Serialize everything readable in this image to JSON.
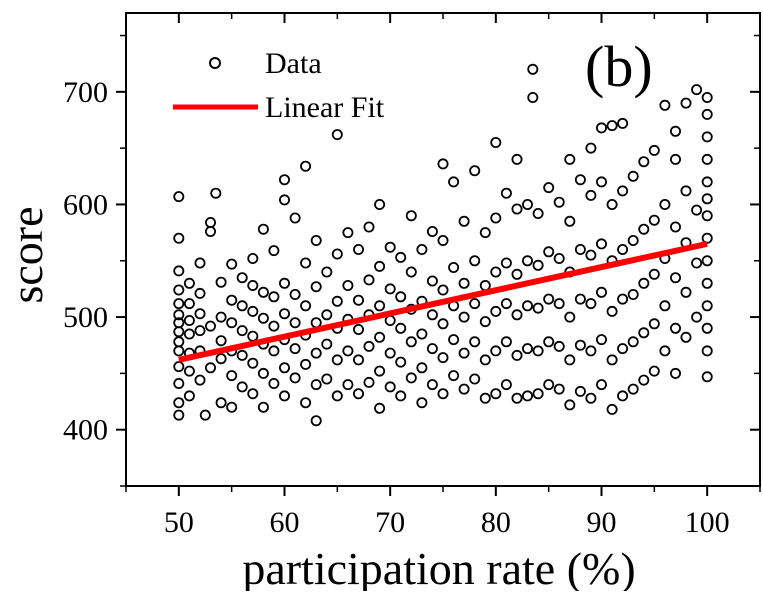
{
  "chart_data": {
    "type": "scatter",
    "panel_label": "(b)",
    "xlabel": "participation rate (%)",
    "ylabel": "score",
    "xlim": [
      45,
      105
    ],
    "ylim": [
      350,
      770
    ],
    "x_ticks": [
      50,
      60,
      70,
      80,
      90,
      100
    ],
    "y_ticks": [
      400,
      500,
      600,
      700
    ],
    "x_tick_labels": [
      "50",
      "60",
      "70",
      "80",
      "90",
      "100"
    ],
    "y_tick_labels": [
      "400",
      "500",
      "600",
      "700"
    ],
    "legend": {
      "position": "top-left",
      "entries": [
        {
          "label": "Data",
          "marker": "open-circle",
          "color": "#000000"
        },
        {
          "label": "Linear Fit",
          "marker": "line",
          "color": "#ff0000"
        }
      ]
    },
    "series": [
      {
        "name": "Data",
        "marker": "open-circle",
        "color": "#000000",
        "points": [
          [
            50,
            413
          ],
          [
            50,
            424
          ],
          [
            50,
            441
          ],
          [
            50,
            456
          ],
          [
            50,
            470
          ],
          [
            50,
            478
          ],
          [
            50,
            487
          ],
          [
            50,
            495
          ],
          [
            50,
            502
          ],
          [
            50,
            512
          ],
          [
            50,
            524
          ],
          [
            50,
            541
          ],
          [
            50,
            570
          ],
          [
            50,
            607
          ],
          [
            51,
            430
          ],
          [
            51,
            452
          ],
          [
            51,
            468
          ],
          [
            51,
            485
          ],
          [
            51,
            497
          ],
          [
            51,
            512
          ],
          [
            51,
            530
          ],
          [
            52,
            444
          ],
          [
            52,
            470
          ],
          [
            52,
            488
          ],
          [
            52,
            503
          ],
          [
            52,
            521
          ],
          [
            52,
            548
          ],
          [
            52.5,
            413
          ],
          [
            53,
            584
          ],
          [
            53,
            576
          ],
          [
            53.5,
            610
          ],
          [
            53,
            455
          ],
          [
            53,
            492
          ],
          [
            54,
            424
          ],
          [
            54,
            463
          ],
          [
            54,
            479
          ],
          [
            54,
            500
          ],
          [
            54,
            531
          ],
          [
            55,
            420
          ],
          [
            55,
            448
          ],
          [
            55,
            470
          ],
          [
            55,
            495
          ],
          [
            55,
            515
          ],
          [
            55,
            547
          ],
          [
            56,
            438
          ],
          [
            56,
            466
          ],
          [
            56,
            488
          ],
          [
            56,
            510
          ],
          [
            56,
            535
          ],
          [
            57,
            432
          ],
          [
            57,
            459
          ],
          [
            57,
            483
          ],
          [
            57,
            505
          ],
          [
            57,
            528
          ],
          [
            57,
            552
          ],
          [
            58,
            420
          ],
          [
            58,
            450
          ],
          [
            58,
            476
          ],
          [
            58,
            499
          ],
          [
            58,
            522
          ],
          [
            58,
            578
          ],
          [
            59,
            441
          ],
          [
            59,
            470
          ],
          [
            59,
            492
          ],
          [
            59,
            518
          ],
          [
            59,
            559
          ],
          [
            60,
            430
          ],
          [
            60,
            455
          ],
          [
            60,
            480
          ],
          [
            60,
            503
          ],
          [
            60,
            530
          ],
          [
            60,
            604
          ],
          [
            60,
            622
          ],
          [
            61,
            446
          ],
          [
            61,
            472
          ],
          [
            61,
            495
          ],
          [
            61,
            520
          ],
          [
            61,
            588
          ],
          [
            62,
            424
          ],
          [
            62,
            458
          ],
          [
            62,
            484
          ],
          [
            62,
            510
          ],
          [
            62,
            548
          ],
          [
            62,
            634
          ],
          [
            63,
            408
          ],
          [
            63,
            440
          ],
          [
            63,
            468
          ],
          [
            63,
            495
          ],
          [
            63,
            527
          ],
          [
            63,
            568
          ],
          [
            64,
            445
          ],
          [
            64,
            476
          ],
          [
            64,
            502
          ],
          [
            64,
            540
          ],
          [
            65,
            430
          ],
          [
            65,
            462
          ],
          [
            65,
            490
          ],
          [
            65,
            514
          ],
          [
            65,
            556
          ],
          [
            65,
            662
          ],
          [
            66,
            440
          ],
          [
            66,
            470
          ],
          [
            66,
            498
          ],
          [
            66,
            528
          ],
          [
            66,
            575
          ],
          [
            67,
            432
          ],
          [
            67,
            462
          ],
          [
            67,
            489
          ],
          [
            67,
            515
          ],
          [
            67,
            560
          ],
          [
            68,
            442
          ],
          [
            68,
            474
          ],
          [
            68,
            502
          ],
          [
            68,
            533
          ],
          [
            68,
            580
          ],
          [
            69,
            419
          ],
          [
            69,
            452
          ],
          [
            69,
            482
          ],
          [
            69,
            510
          ],
          [
            69,
            545
          ],
          [
            69,
            600
          ],
          [
            70,
            438
          ],
          [
            70,
            468
          ],
          [
            70,
            497
          ],
          [
            70,
            525
          ],
          [
            70,
            562
          ],
          [
            71,
            430
          ],
          [
            71,
            460
          ],
          [
            71,
            490
          ],
          [
            71,
            518
          ],
          [
            71,
            553
          ],
          [
            72,
            446
          ],
          [
            72,
            478
          ],
          [
            72,
            507
          ],
          [
            72,
            540
          ],
          [
            72,
            590
          ],
          [
            73,
            424
          ],
          [
            73,
            455
          ],
          [
            73,
            485
          ],
          [
            73,
            514
          ],
          [
            73,
            560
          ],
          [
            74,
            440
          ],
          [
            74,
            472
          ],
          [
            74,
            502
          ],
          [
            74,
            532
          ],
          [
            74,
            576
          ],
          [
            75,
            432
          ],
          [
            75,
            464
          ],
          [
            75,
            494
          ],
          [
            75,
            524
          ],
          [
            75,
            568
          ],
          [
            75,
            636
          ],
          [
            76,
            448
          ],
          [
            76,
            480
          ],
          [
            76,
            510
          ],
          [
            76,
            544
          ],
          [
            76,
            620
          ],
          [
            77,
            436
          ],
          [
            77,
            468
          ],
          [
            77,
            500
          ],
          [
            77,
            530
          ],
          [
            77,
            585
          ],
          [
            78,
            445
          ],
          [
            78,
            478
          ],
          [
            78,
            512
          ],
          [
            78,
            550
          ],
          [
            78,
            630
          ],
          [
            79,
            428
          ],
          [
            79,
            462
          ],
          [
            79,
            496
          ],
          [
            79,
            528
          ],
          [
            79,
            575
          ],
          [
            80,
            432
          ],
          [
            80,
            470
          ],
          [
            80,
            505
          ],
          [
            80,
            540
          ],
          [
            80,
            588
          ],
          [
            80,
            655
          ],
          [
            81,
            440
          ],
          [
            81,
            478
          ],
          [
            81,
            512
          ],
          [
            81,
            548
          ],
          [
            81,
            610
          ],
          [
            82,
            428
          ],
          [
            82,
            466
          ],
          [
            82,
            502
          ],
          [
            82,
            538
          ],
          [
            82,
            596
          ],
          [
            82,
            640
          ],
          [
            83,
            430
          ],
          [
            83,
            472
          ],
          [
            83,
            510
          ],
          [
            83,
            550
          ],
          [
            83,
            600
          ],
          [
            83.5,
            695
          ],
          [
            83.5,
            720
          ],
          [
            84,
            432
          ],
          [
            84,
            470
          ],
          [
            84,
            508
          ],
          [
            84,
            546
          ],
          [
            84,
            592
          ],
          [
            85,
            440
          ],
          [
            85,
            478
          ],
          [
            85,
            516
          ],
          [
            85,
            558
          ],
          [
            85,
            615
          ],
          [
            86,
            436
          ],
          [
            86,
            474
          ],
          [
            86,
            512
          ],
          [
            86,
            552
          ],
          [
            86,
            602
          ],
          [
            87,
            422
          ],
          [
            87,
            462
          ],
          [
            87,
            500
          ],
          [
            87,
            540
          ],
          [
            87,
            585
          ],
          [
            87,
            640
          ],
          [
            88,
            434
          ],
          [
            88,
            475
          ],
          [
            88,
            516
          ],
          [
            88,
            560
          ],
          [
            88,
            622
          ],
          [
            89,
            428
          ],
          [
            89,
            470
          ],
          [
            89,
            512
          ],
          [
            89,
            555
          ],
          [
            89,
            608
          ],
          [
            89,
            650
          ],
          [
            90,
            440
          ],
          [
            90,
            480
          ],
          [
            90,
            522
          ],
          [
            90,
            565
          ],
          [
            90,
            620
          ],
          [
            90,
            668
          ],
          [
            91,
            418
          ],
          [
            91,
            462
          ],
          [
            91,
            505
          ],
          [
            91,
            550
          ],
          [
            91,
            600
          ],
          [
            91,
            670
          ],
          [
            92,
            430
          ],
          [
            92,
            472
          ],
          [
            92,
            516
          ],
          [
            92,
            560
          ],
          [
            92,
            612
          ],
          [
            92,
            672
          ],
          [
            93,
            436
          ],
          [
            93,
            478
          ],
          [
            93,
            520
          ],
          [
            93,
            568
          ],
          [
            93,
            625
          ],
          [
            94,
            444
          ],
          [
            94,
            486
          ],
          [
            94,
            530
          ],
          [
            94,
            578
          ],
          [
            94,
            638
          ],
          [
            95,
            452
          ],
          [
            95,
            494
          ],
          [
            95,
            538
          ],
          [
            95,
            586
          ],
          [
            95,
            648
          ],
          [
            96,
            470
          ],
          [
            96,
            510
          ],
          [
            96,
            552
          ],
          [
            96,
            600
          ],
          [
            96,
            688
          ],
          [
            97,
            450
          ],
          [
            97,
            490
          ],
          [
            97,
            535
          ],
          [
            97,
            580
          ],
          [
            97,
            640
          ],
          [
            97,
            665
          ],
          [
            98,
            482
          ],
          [
            98,
            522
          ],
          [
            98,
            566
          ],
          [
            98,
            612
          ],
          [
            98,
            690
          ],
          [
            99,
            500
          ],
          [
            99,
            548
          ],
          [
            99,
            595
          ],
          [
            99,
            702
          ],
          [
            100,
            447
          ],
          [
            100,
            470
          ],
          [
            100,
            490
          ],
          [
            100,
            510
          ],
          [
            100,
            530
          ],
          [
            100,
            550
          ],
          [
            100,
            570
          ],
          [
            100,
            590
          ],
          [
            100,
            605
          ],
          [
            100,
            620
          ],
          [
            100,
            640
          ],
          [
            100,
            660
          ],
          [
            100,
            680
          ],
          [
            100,
            695
          ]
        ]
      }
    ],
    "fit": {
      "name": "Linear Fit",
      "color": "#ff0000",
      "x": [
        50,
        100
      ],
      "y": [
        462,
        565
      ]
    }
  }
}
